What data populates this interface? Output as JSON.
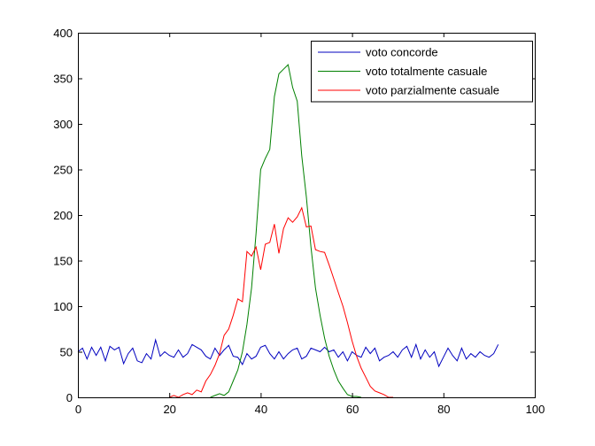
{
  "chart_data": {
    "type": "line",
    "title": "",
    "xlabel": "",
    "ylabel": "",
    "xlim": [
      0,
      100
    ],
    "ylim": [
      0,
      400
    ],
    "xticks": [
      0,
      20,
      40,
      60,
      80,
      100
    ],
    "yticks": [
      0,
      50,
      100,
      150,
      200,
      250,
      300,
      350,
      400
    ],
    "grid": false,
    "legend_position": "top-right",
    "series": [
      {
        "name": "voto concorde",
        "color": "#0000bf",
        "x": [
          0,
          1,
          2,
          3,
          4,
          5,
          6,
          7,
          8,
          9,
          10,
          11,
          12,
          13,
          14,
          15,
          16,
          17,
          18,
          19,
          20,
          21,
          22,
          23,
          24,
          25,
          26,
          27,
          28,
          29,
          30,
          31,
          32,
          33,
          34,
          35,
          36,
          37,
          38,
          39,
          40,
          41,
          42,
          43,
          44,
          45,
          46,
          47,
          48,
          49,
          50,
          51,
          52,
          53,
          54,
          55,
          56,
          57,
          58,
          59,
          60,
          61,
          62,
          63,
          64,
          65,
          66,
          67,
          68,
          69,
          70,
          71,
          72,
          73,
          74,
          75,
          76,
          77,
          78,
          79,
          80,
          81,
          82,
          83,
          84,
          85,
          86,
          87,
          88,
          89,
          90,
          91,
          92
        ],
        "y": [
          50,
          54,
          42,
          55,
          46,
          55,
          40,
          56,
          52,
          55,
          37,
          48,
          54,
          40,
          38,
          48,
          42,
          63,
          45,
          50,
          46,
          44,
          52,
          44,
          48,
          58,
          55,
          52,
          45,
          42,
          54,
          46,
          52,
          57,
          45,
          44,
          36,
          48,
          42,
          45,
          55,
          57,
          48,
          42,
          50,
          42,
          48,
          52,
          54,
          42,
          45,
          54,
          52,
          50,
          55,
          50,
          52,
          44,
          50,
          40,
          50,
          46,
          44,
          55,
          48,
          54,
          40,
          44,
          46,
          50,
          44,
          52,
          56,
          44,
          58,
          42,
          52,
          44,
          50,
          34,
          44,
          54,
          46,
          40,
          54,
          42,
          48,
          44,
          50,
          46,
          44,
          48,
          58
        ]
      },
      {
        "name": "voto totalmente casuale",
        "color": "#008000",
        "x": [
          29,
          30,
          31,
          32,
          33,
          34,
          35,
          36,
          37,
          38,
          39,
          40,
          41,
          42,
          43,
          44,
          45,
          46,
          47,
          48,
          49,
          50,
          51,
          52,
          53,
          54,
          55,
          56,
          57,
          58,
          59,
          60,
          61,
          62
        ],
        "y": [
          0,
          2,
          4,
          2,
          6,
          18,
          30,
          50,
          80,
          120,
          180,
          250,
          262,
          272,
          330,
          355,
          360,
          365,
          340,
          325,
          265,
          220,
          165,
          120,
          90,
          65,
          45,
          30,
          18,
          10,
          3,
          1,
          1,
          0
        ]
      },
      {
        "name": "voto parzialmente casuale",
        "color": "#ff0000",
        "x": [
          20,
          21,
          22,
          23,
          24,
          25,
          26,
          27,
          28,
          29,
          30,
          31,
          32,
          33,
          34,
          35,
          36,
          37,
          38,
          39,
          40,
          41,
          42,
          43,
          44,
          45,
          46,
          47,
          48,
          49,
          50,
          51,
          52,
          53,
          54,
          55,
          56,
          57,
          58,
          59,
          60,
          61,
          62,
          63,
          64,
          65,
          66,
          67,
          68,
          69
        ],
        "y": [
          0,
          2,
          0,
          3,
          5,
          3,
          8,
          6,
          18,
          25,
          35,
          48,
          68,
          75,
          90,
          108,
          105,
          160,
          155,
          165,
          140,
          168,
          170,
          190,
          158,
          185,
          197,
          192,
          198,
          208,
          187,
          188,
          162,
          160,
          159,
          145,
          130,
          115,
          100,
          82,
          62,
          45,
          32,
          22,
          12,
          7,
          5,
          3,
          0,
          0
        ]
      }
    ]
  }
}
